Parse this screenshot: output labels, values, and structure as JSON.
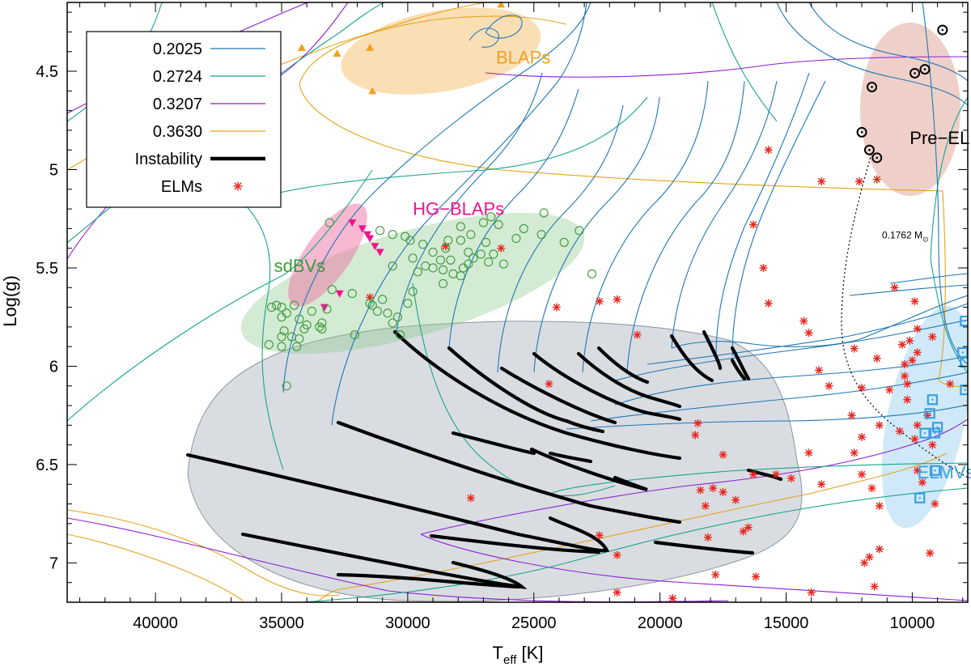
{
  "chart_data": {
    "type": "scatter",
    "xlabel": "T",
    "xlabel_sub": "eff",
    "xlabel_unit": "[K]",
    "ylabel": "Log(g)",
    "xlim": [
      43500,
      7800
    ],
    "ylim": [
      4.15,
      7.2
    ],
    "xticks": [
      40000,
      35000,
      30000,
      25000,
      20000,
      15000,
      10000
    ],
    "yticks": [
      4.5,
      5,
      5.5,
      6,
      6.5,
      7
    ],
    "xtick_labels": [
      "40000",
      "35000",
      "30000",
      "25000",
      "20000",
      "15000",
      "10000"
    ],
    "ytick_labels": [
      "4.5",
      "5",
      "5.5",
      "6",
      "6.5",
      "7"
    ],
    "colors": {
      "t02025": "#1f77b4",
      "t02724": "#17a589",
      "t03207": "#8e1ed6",
      "t03630": "#e6a21a",
      "elm": "#e8261e",
      "instability": "#000000",
      "pink": "#f0148c",
      "lightblue": "#3aa0e0",
      "sdbv": "#3a9a3a"
    },
    "legend": {
      "position": "top-left",
      "entries": [
        {
          "label": "0.2025",
          "kind": "line",
          "color": "#1f77b4"
        },
        {
          "label": "0.2724",
          "kind": "line",
          "color": "#17a589"
        },
        {
          "label": "0.3207",
          "kind": "line",
          "color": "#8e1ed6"
        },
        {
          "label": "0.3630",
          "kind": "line",
          "color": "#e6a21a"
        },
        {
          "label": "Instability",
          "kind": "thick",
          "color": "#000000"
        },
        {
          "label": "ELMs",
          "kind": "star",
          "color": "#e8261e"
        }
      ]
    },
    "regions": [
      {
        "label": "BLAPs",
        "color": "#f5a623",
        "text_color": "#f0a020",
        "label_at": [
          26500,
          4.46
        ]
      },
      {
        "label": "Pre−ELMVs",
        "color": "#c55a3a",
        "text_color": "#000000",
        "label_at": [
          10100,
          4.87
        ]
      },
      {
        "label": "HG−BLAPs",
        "color": "#f0148c",
        "text_color": "#f0148c",
        "label_at": [
          29800,
          5.23
        ]
      },
      {
        "label": "sdBVs",
        "color": "#3a9a3a",
        "text_color": "#3a9a3a",
        "label_at": [
          35300,
          5.52
        ]
      },
      {
        "label": "ELMVs",
        "color": "#3aa0e0",
        "text_color": "#3aa0e0",
        "label_at": [
          9800,
          6.57
        ]
      }
    ],
    "annotation": {
      "text": "0.1762 M",
      "sub": "⊙",
      "at": [
        11200,
        5.35
      ]
    },
    "elms": [
      [
        15700,
        4.9
      ],
      [
        13600,
        5.06
      ],
      [
        12100,
        5.06
      ],
      [
        11400,
        5.05
      ],
      [
        16300,
        5.28
      ],
      [
        15900,
        5.5
      ],
      [
        15700,
        5.68
      ],
      [
        14300,
        5.77
      ],
      [
        14100,
        5.83
      ],
      [
        10700,
        5.6
      ],
      [
        9900,
        5.67
      ],
      [
        9800,
        5.81
      ],
      [
        10100,
        5.87
      ],
      [
        10400,
        5.89
      ],
      [
        9200,
        5.85
      ],
      [
        12300,
        5.91
      ],
      [
        11400,
        5.96
      ],
      [
        10300,
        5.99
      ],
      [
        10000,
        5.97
      ],
      [
        9800,
        5.93
      ],
      [
        10300,
        6.05
      ],
      [
        10200,
        6.09
      ],
      [
        12000,
        6.11
      ],
      [
        13700,
        6.02
      ],
      [
        13300,
        6.1
      ],
      [
        10900,
        6.12
      ],
      [
        10200,
        6.17
      ],
      [
        9400,
        6.25
      ],
      [
        8500,
        6.09
      ],
      [
        12400,
        6.25
      ],
      [
        11300,
        6.3
      ],
      [
        12000,
        6.36
      ],
      [
        10500,
        6.33
      ],
      [
        9800,
        6.3
      ],
      [
        9900,
        6.37
      ],
      [
        9200,
        6.4
      ],
      [
        14100,
        6.44
      ],
      [
        14800,
        6.57
      ],
      [
        13600,
        6.6
      ],
      [
        12000,
        6.55
      ],
      [
        11600,
        6.62
      ],
      [
        11300,
        6.71
      ],
      [
        9800,
        6.53
      ],
      [
        9600,
        6.59
      ],
      [
        12300,
        6.44
      ],
      [
        9100,
        6.7
      ],
      [
        17500,
        6.45
      ],
      [
        16300,
        6.55
      ],
      [
        15400,
        6.55
      ],
      [
        17000,
        6.68
      ],
      [
        18400,
        6.63
      ],
      [
        17900,
        6.62
      ],
      [
        17500,
        6.64
      ],
      [
        18200,
        6.71
      ],
      [
        16700,
        6.84
      ],
      [
        16500,
        6.82
      ],
      [
        18100,
        6.87
      ],
      [
        21700,
        6.96
      ],
      [
        22400,
        6.86
      ],
      [
        17800,
        7.06
      ],
      [
        16200,
        7.07
      ],
      [
        21700,
        7.15
      ],
      [
        19500,
        7.18
      ],
      [
        14000,
        7.15
      ],
      [
        11900,
        7.0
      ],
      [
        11700,
        6.97
      ],
      [
        11300,
        6.93
      ],
      [
        9300,
        6.95
      ],
      [
        11500,
        7.12
      ],
      [
        18500,
        6.29
      ],
      [
        18600,
        6.35
      ],
      [
        20900,
        5.84
      ],
      [
        22400,
        5.67
      ],
      [
        24100,
        5.7
      ],
      [
        21700,
        5.66
      ],
      [
        24400,
        6.09
      ],
      [
        27500,
        6.67
      ],
      [
        31500,
        5.65
      ],
      [
        28500,
        5.39
      ],
      [
        26300,
        5.4
      ]
    ],
    "blaps": [
      [
        34200,
        4.38
      ],
      [
        32800,
        4.41
      ],
      [
        31500,
        4.38
      ],
      [
        31400,
        4.6
      ],
      [
        26300,
        4.16
      ]
    ],
    "pre_elmvs": [
      [
        8800,
        4.29
      ],
      [
        9500,
        4.49
      ],
      [
        9900,
        4.51
      ],
      [
        11600,
        4.58
      ],
      [
        12000,
        4.81
      ],
      [
        11700,
        4.9
      ],
      [
        11400,
        4.94
      ]
    ],
    "hg_blaps": [
      [
        32200,
        5.27
      ],
      [
        31800,
        5.3
      ],
      [
        31600,
        5.33
      ],
      [
        31500,
        5.35
      ],
      [
        31300,
        5.39
      ],
      [
        31100,
        5.42
      ],
      [
        32700,
        5.63
      ],
      [
        33300,
        5.7
      ]
    ],
    "elmvs": [
      [
        7900,
        5.77
      ],
      [
        8000,
        5.93
      ],
      [
        7900,
        5.98
      ],
      [
        7900,
        6.12
      ],
      [
        9200,
        6.17
      ],
      [
        9300,
        6.24
      ],
      [
        9000,
        6.31
      ],
      [
        9100,
        6.34
      ],
      [
        9500,
        6.34
      ],
      [
        9100,
        6.53
      ],
      [
        9700,
        6.67
      ]
    ],
    "sdbvs": [
      [
        35000,
        5.7
      ],
      [
        34500,
        5.69
      ],
      [
        34800,
        5.73
      ],
      [
        34300,
        5.76
      ],
      [
        33800,
        5.72
      ],
      [
        34100,
        5.81
      ],
      [
        34000,
        5.79
      ],
      [
        33500,
        5.8
      ],
      [
        33400,
        5.78
      ],
      [
        33200,
        5.71
      ],
      [
        33000,
        5.61
      ],
      [
        32200,
        5.63
      ],
      [
        31500,
        5.68
      ],
      [
        31000,
        5.66
      ],
      [
        31400,
        5.69
      ],
      [
        30800,
        5.73
      ],
      [
        30400,
        5.75
      ],
      [
        30600,
        5.78
      ],
      [
        30300,
        5.84
      ],
      [
        34300,
        5.86
      ],
      [
        34400,
        5.9
      ],
      [
        35000,
        5.85
      ],
      [
        35000,
        5.9
      ],
      [
        34900,
        5.82
      ],
      [
        34600,
        5.85
      ],
      [
        34800,
        6.1
      ],
      [
        33400,
        5.81
      ],
      [
        32100,
        5.84
      ],
      [
        31200,
        5.72
      ],
      [
        29800,
        5.62
      ],
      [
        29600,
        5.52
      ],
      [
        29300,
        5.49
      ],
      [
        29000,
        5.5
      ],
      [
        28700,
        5.46
      ],
      [
        28600,
        5.51
      ],
      [
        28300,
        5.46
      ],
      [
        28200,
        5.53
      ],
      [
        27900,
        5.54
      ],
      [
        27800,
        5.5
      ],
      [
        27600,
        5.42
      ],
      [
        27400,
        5.45
      ],
      [
        27100,
        5.43
      ],
      [
        26600,
        5.43
      ],
      [
        26200,
        5.48
      ],
      [
        26900,
        5.37
      ],
      [
        27500,
        5.33
      ],
      [
        27900,
        5.36
      ],
      [
        28500,
        5.4
      ],
      [
        29400,
        5.38
      ],
      [
        29900,
        5.36
      ],
      [
        30100,
        5.34
      ],
      [
        30600,
        5.33
      ],
      [
        31100,
        5.31
      ],
      [
        27000,
        5.27
      ],
      [
        26700,
        5.24
      ],
      [
        26400,
        5.28
      ],
      [
        24600,
        5.22
      ],
      [
        23800,
        5.37
      ],
      [
        23200,
        5.31
      ],
      [
        22700,
        5.53
      ],
      [
        25400,
        5.3
      ],
      [
        25700,
        5.35
      ],
      [
        27900,
        5.29
      ],
      [
        24700,
        5.33
      ],
      [
        30000,
        5.68
      ],
      [
        29000,
        5.42
      ],
      [
        28600,
        5.58
      ],
      [
        30600,
        5.49
      ],
      [
        29800,
        5.45
      ],
      [
        33100,
        5.27
      ],
      [
        28400,
        5.36
      ],
      [
        27600,
        5.48
      ],
      [
        26800,
        5.47
      ],
      [
        35400,
        5.7
      ],
      [
        35200,
        5.69
      ],
      [
        35000,
        5.75
      ],
      [
        35500,
        5.89
      ]
    ]
  }
}
